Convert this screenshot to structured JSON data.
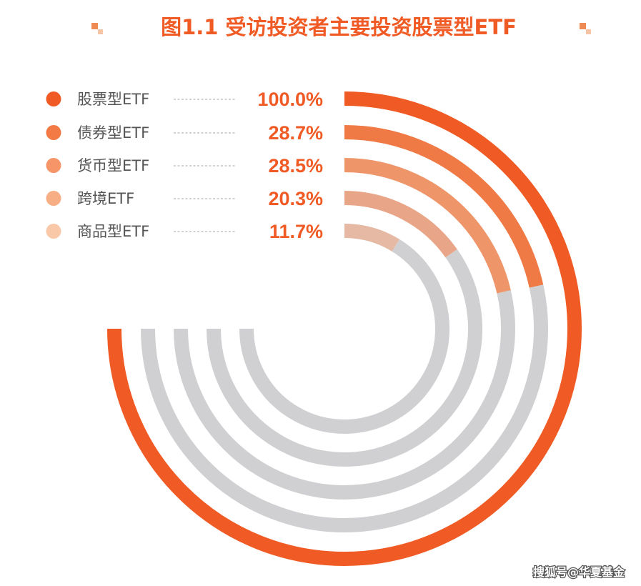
{
  "title": "图1.1  受访投资者主要投资股票型ETF",
  "watermark": "搜狐号@华夏基金",
  "colors": {
    "title": "#F05A24",
    "value_text": "#F05A24",
    "track": "#D0CFD1",
    "decor": "#F08A55"
  },
  "chart_data": {
    "type": "radial-bar",
    "title": "图1.1  受访投资者主要投资股票型ETF",
    "unit": "%",
    "max": 100,
    "categories": [
      "股票型ETF",
      "债券型ETF",
      "货币型ETF",
      "跨境ETF",
      "商品型ETF"
    ],
    "values": [
      100.0,
      28.7,
      28.5,
      20.3,
      11.7
    ],
    "value_labels": [
      "100.0%",
      "28.7%",
      "28.5%",
      "20.3%",
      "11.7%"
    ],
    "colors": [
      "#F05A24",
      "#F07A45",
      "#EE956A",
      "#E9A587",
      "#E6B9A4"
    ],
    "legend_dot_colors": [
      "#F05A24",
      "#F37A45",
      "#F59568",
      "#F7AE85",
      "#F9C8A8"
    ],
    "legend_placement": "top-left"
  }
}
